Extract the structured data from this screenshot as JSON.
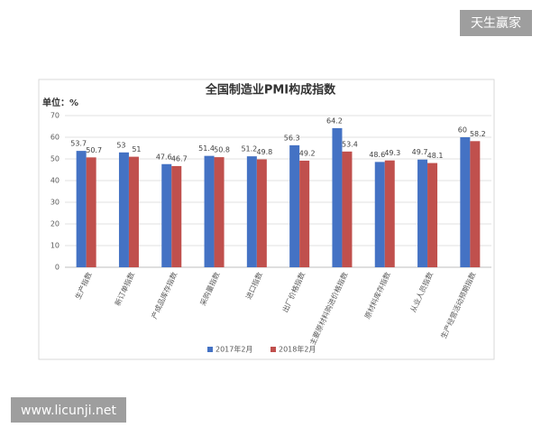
{
  "chart_data": {
    "type": "bar",
    "title": "全国制造业PMI构成指数",
    "unit_label": "单位：%",
    "categories": [
      "生产指数",
      "新订单指数",
      "产成品库存指数",
      "采购量指数",
      "进口指数",
      "出厂价格指数",
      "主要原材料购进价格指数",
      "原材料库存指数",
      "从业人员指数",
      "生产经营活动预期指数"
    ],
    "series": [
      {
        "name": "2017年2月",
        "color": "#4472c4",
        "values": [
          53.7,
          53,
          47.6,
          51.4,
          51.2,
          56.3,
          64.2,
          48.6,
          49.7,
          60
        ]
      },
      {
        "name": "2018年2月",
        "color": "#c0504d",
        "values": [
          50.7,
          51,
          46.7,
          50.8,
          49.8,
          49.2,
          53.4,
          49.3,
          48.1,
          58.2
        ]
      }
    ],
    "ylim": [
      0,
      70
    ],
    "yticks": [
      0,
      10,
      20,
      30,
      40,
      50,
      60,
      70
    ],
    "grid": true,
    "legend": "bottom"
  },
  "watermark_top": "天生赢家",
  "watermark_bottom": "www.licunji.net"
}
